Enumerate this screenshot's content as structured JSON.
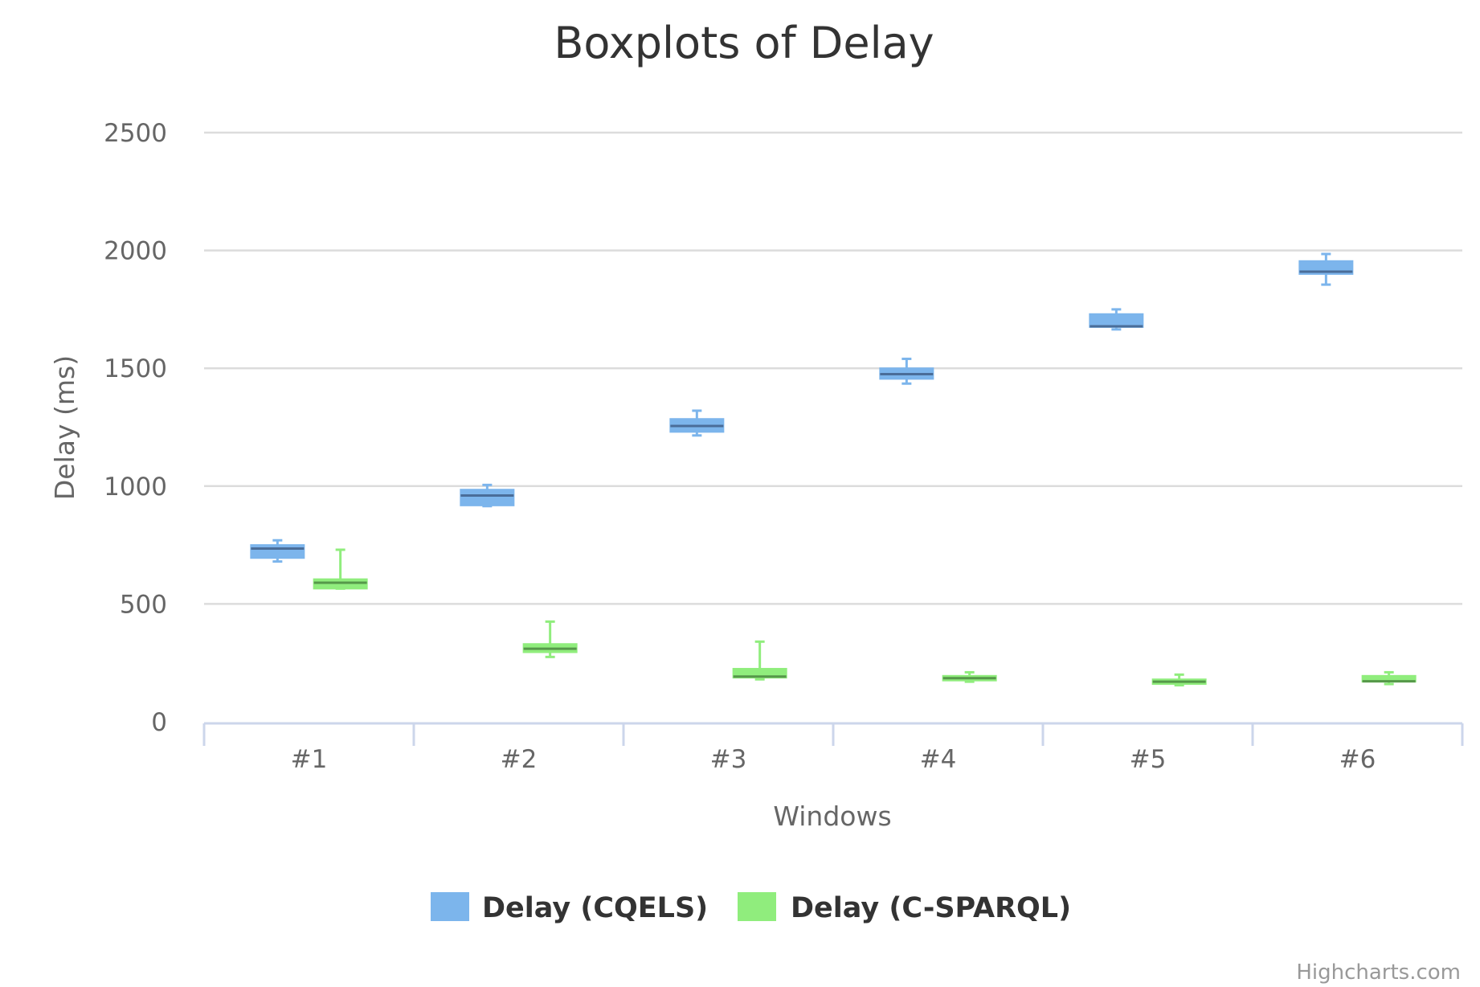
{
  "chart_data": {
    "type": "boxplot",
    "title": "Boxplots of Delay",
    "xlabel": "Windows",
    "ylabel": "Delay (ms)",
    "categories": [
      "#1",
      "#2",
      "#3",
      "#4",
      "#5",
      "#6"
    ],
    "ylim": [
      0,
      2500
    ],
    "yticks": [
      "0",
      "500",
      "1000",
      "1500",
      "2000",
      "2500"
    ],
    "grid": true,
    "legend_position": "bottom-center",
    "series": [
      {
        "name": "Delay (CQELS)",
        "color": "#7cb5ec",
        "median_color": "#4a6d99",
        "boxes": [
          {
            "low": 680,
            "q1": 695,
            "median": 735,
            "q3": 750,
            "high": 770
          },
          {
            "low": 915,
            "q1": 918,
            "median": 960,
            "q3": 985,
            "high": 1005
          },
          {
            "low": 1215,
            "q1": 1230,
            "median": 1255,
            "q3": 1285,
            "high": 1320
          },
          {
            "low": 1435,
            "q1": 1455,
            "median": 1475,
            "q3": 1500,
            "high": 1540
          },
          {
            "low": 1665,
            "q1": 1675,
            "median": 1678,
            "q3": 1730,
            "high": 1750
          },
          {
            "low": 1855,
            "q1": 1900,
            "median": 1910,
            "q3": 1955,
            "high": 1985
          }
        ]
      },
      {
        "name": "Delay (C-SPARQL)",
        "color": "#90ed7d",
        "median_color": "#56984a",
        "boxes": [
          {
            "low": 565,
            "q1": 565,
            "median": 590,
            "q3": 605,
            "high": 730
          },
          {
            "low": 275,
            "q1": 295,
            "median": 310,
            "q3": 330,
            "high": 425
          },
          {
            "low": 180,
            "q1": 187,
            "median": 192,
            "q3": 225,
            "high": 340
          },
          {
            "low": 170,
            "q1": 175,
            "median": 185,
            "q3": 195,
            "high": 210
          },
          {
            "low": 155,
            "q1": 160,
            "median": 170,
            "q3": 180,
            "high": 200
          },
          {
            "low": 160,
            "q1": 170,
            "median": 172,
            "q3": 195,
            "high": 210
          }
        ]
      }
    ]
  },
  "credits": "Highcharts.com"
}
